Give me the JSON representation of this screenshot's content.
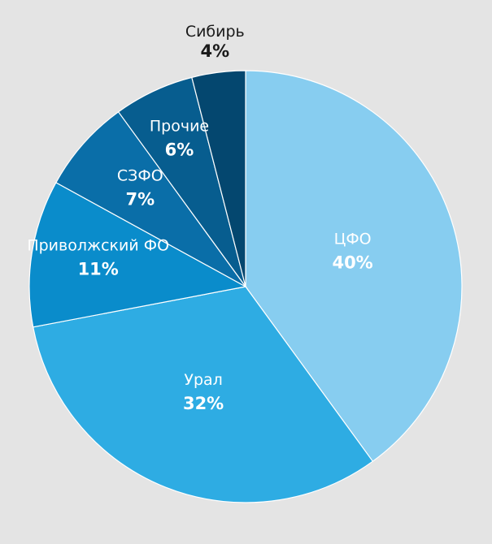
{
  "chart_data": {
    "type": "pie",
    "categories": [
      "ЦФО",
      "Урал",
      "Приволжский ФО",
      "СЗФО",
      "Прочие",
      "Сибирь"
    ],
    "values": [
      40,
      32,
      11,
      7,
      6,
      4
    ],
    "value_labels": [
      "40%",
      "32%",
      "11%",
      "7%",
      "6%",
      "4%"
    ],
    "colors": [
      "#87cdf0",
      "#2eace3",
      "#0a8ccb",
      "#0a6ea8",
      "#075d8f",
      "#04476f"
    ],
    "label_colors": [
      "#ffffff",
      "#ffffff",
      "#ffffff",
      "#ffffff",
      "#ffffff",
      "#1a1a1a"
    ],
    "start": "12 o'clock",
    "direction": "clockwise",
    "legend": "none"
  }
}
